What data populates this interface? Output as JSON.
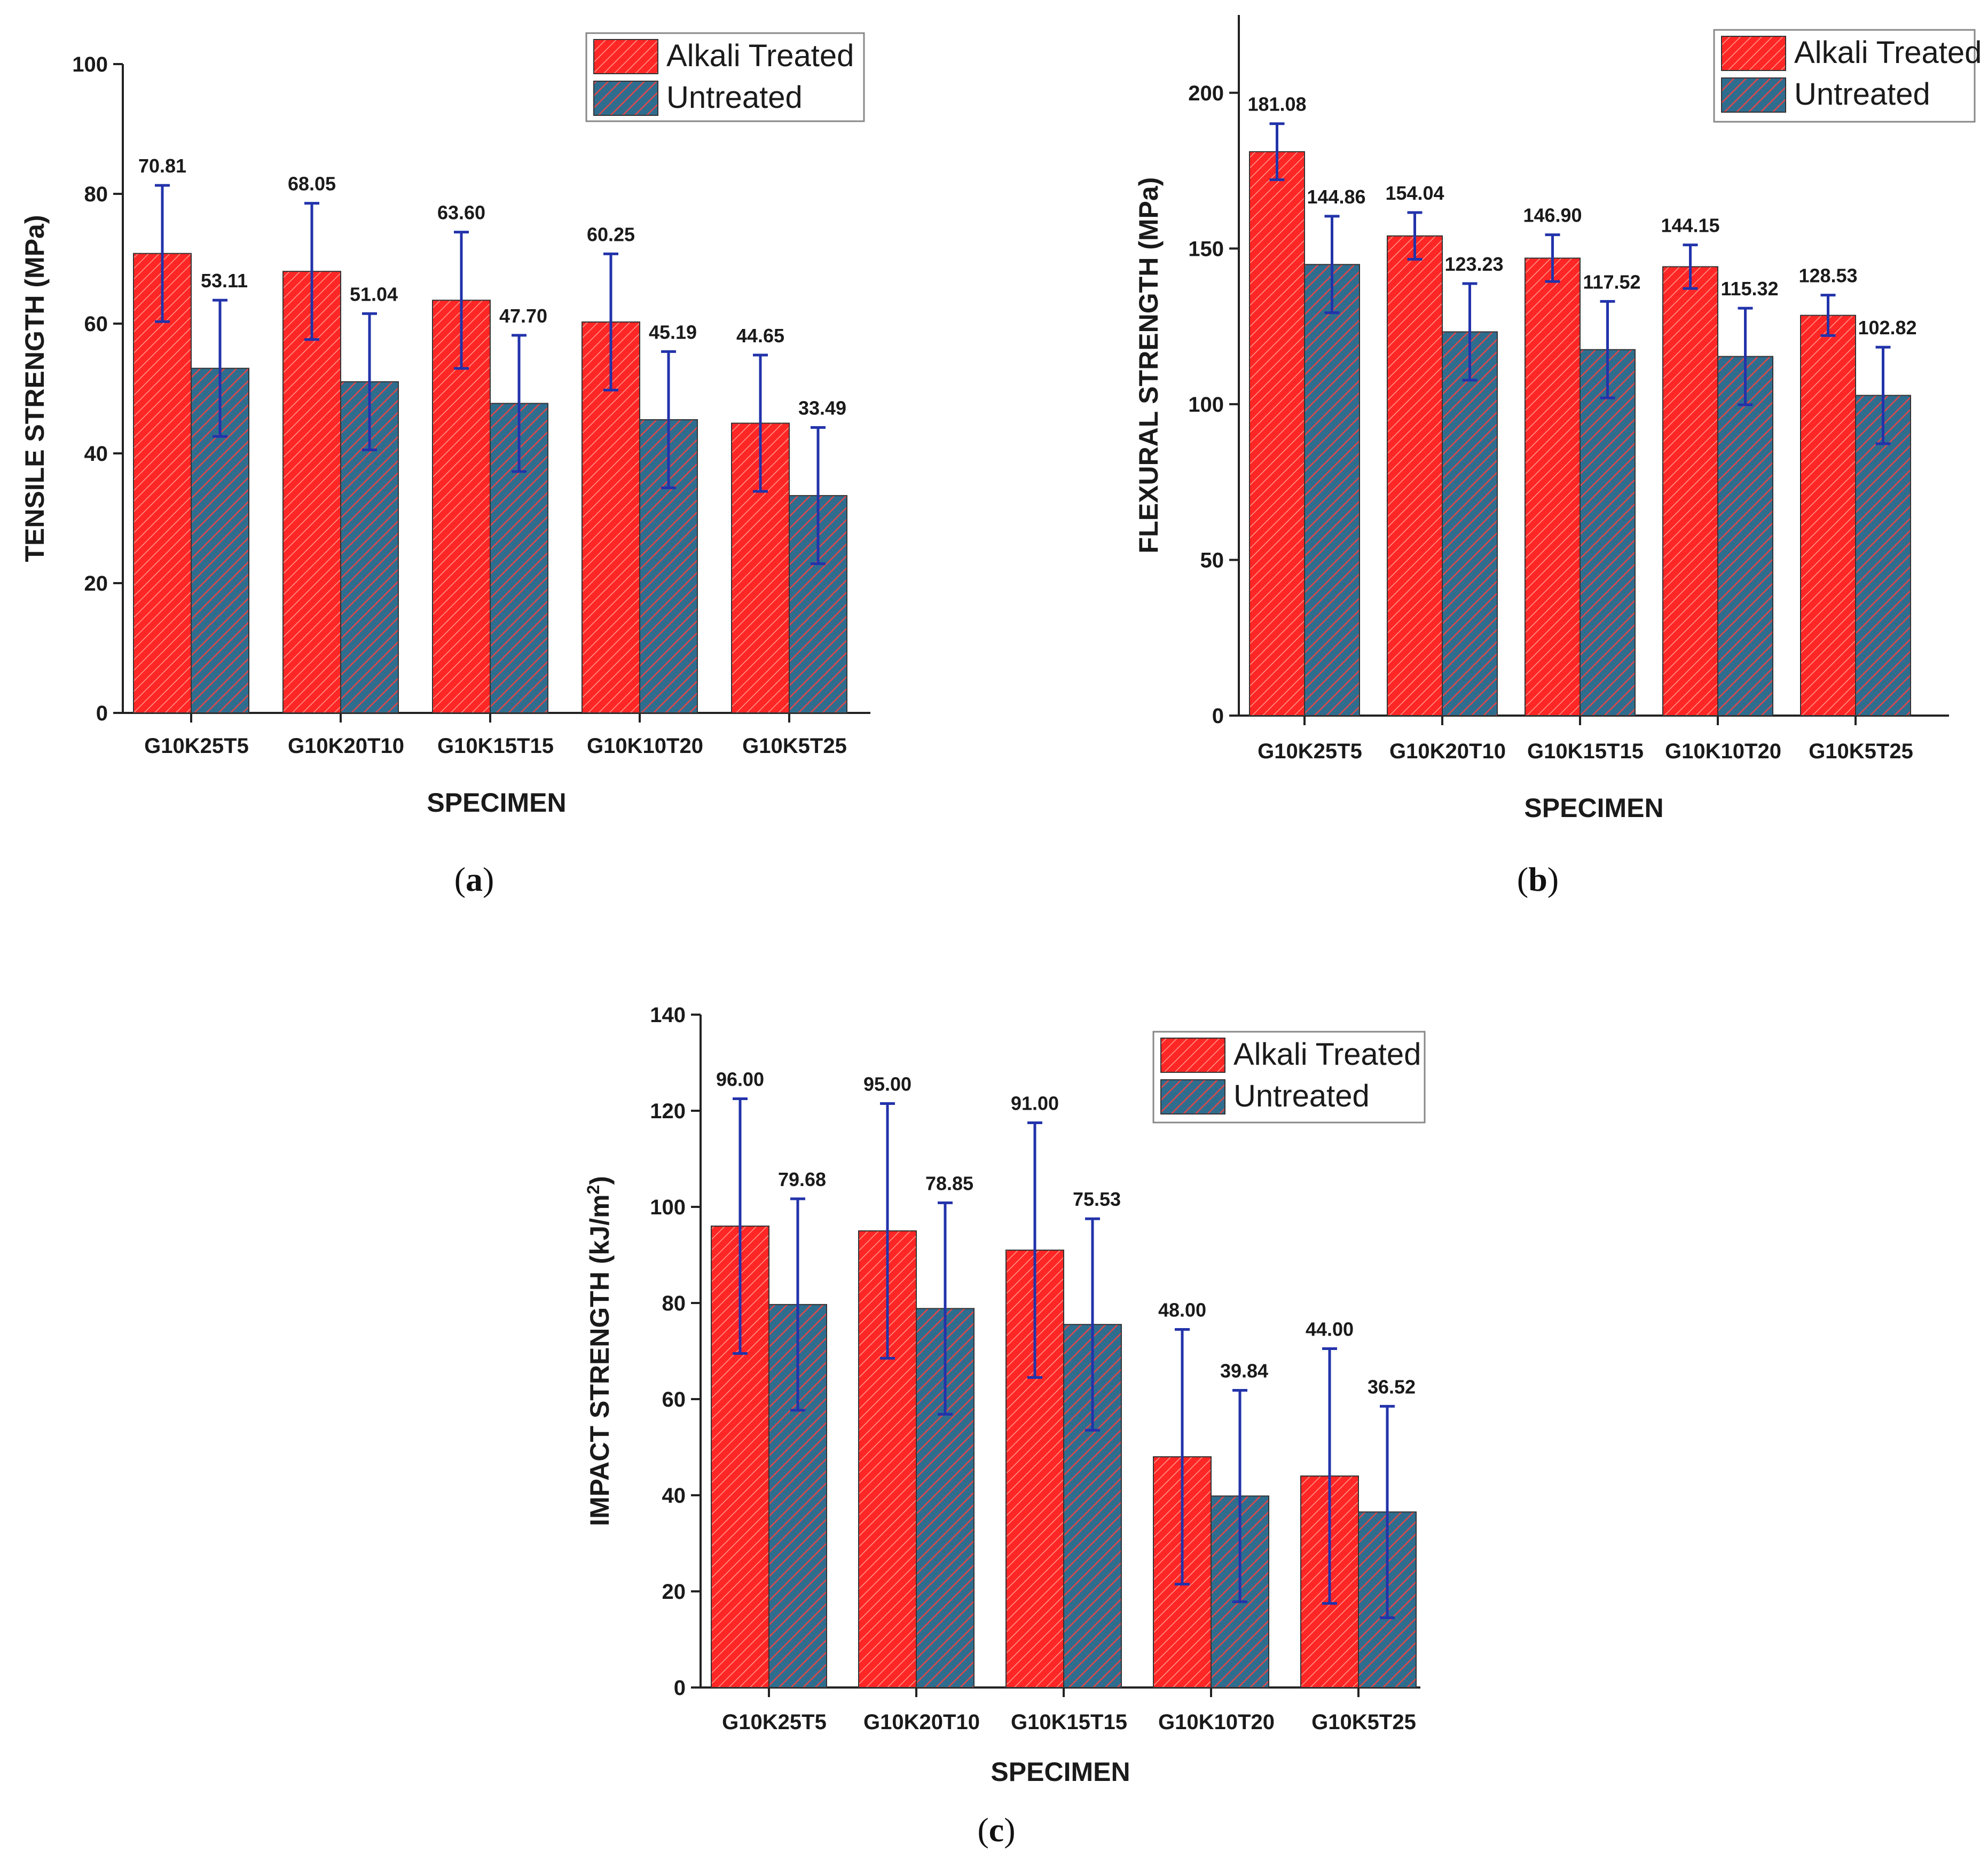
{
  "colors": {
    "treated": "#ff2626",
    "untreated": "#2f6d8f",
    "error_bar": "#2233aa",
    "axis": "#222222"
  },
  "chart_data": [
    {
      "id": "a",
      "type": "bar",
      "caption_letter": "a",
      "ylabel": "TENSILE STRENGTH (MPa)",
      "xlabel": "SPECIMEN",
      "ylim": [
        0,
        100
      ],
      "yticks": [
        0,
        20,
        40,
        60,
        80,
        100
      ],
      "categories": [
        "G10K25T5",
        "G10K20T10",
        "G10K15T15",
        "G10K10T20",
        "G10K5T25"
      ],
      "legend_position": "top-right",
      "series": [
        {
          "name": "Alkali Treated",
          "values": [
            70.81,
            68.05,
            63.6,
            60.25,
            44.65
          ],
          "labels": [
            "70.81",
            "68.05",
            "63.60",
            "60.25",
            "44.65"
          ],
          "error": [
            10.5,
            10.5,
            10.5,
            10.5,
            10.5
          ]
        },
        {
          "name": "Untreated",
          "values": [
            53.11,
            51.04,
            47.7,
            45.19,
            33.49
          ],
          "labels": [
            "53.11",
            "51.04",
            "47.70",
            "45.19",
            "33.49"
          ],
          "error": [
            10.5,
            10.5,
            10.5,
            10.5,
            10.5
          ]
        }
      ]
    },
    {
      "id": "b",
      "type": "bar",
      "caption_letter": "b",
      "ylabel": "FLEXURAL STRENGTH (MPa)",
      "xlabel": "SPECIMEN",
      "ylim": [
        0,
        225
      ],
      "yticks": [
        0,
        50,
        100,
        150,
        200
      ],
      "categories": [
        "G10K25T5",
        "G10K20T10",
        "G10K15T15",
        "G10K10T20",
        "G10K5T25"
      ],
      "legend_position": "top-right",
      "series": [
        {
          "name": "Alkali Treated",
          "values": [
            181.08,
            154.04,
            146.9,
            144.15,
            128.53
          ],
          "labels": [
            "181.08",
            "154.04",
            "146.90",
            "144.15",
            "128.53"
          ],
          "error": [
            9,
            7.5,
            7.5,
            7,
            6.5
          ]
        },
        {
          "name": "Untreated",
          "values": [
            144.86,
            123.23,
            117.52,
            115.32,
            102.82
          ],
          "labels": [
            "144.86",
            "123.23",
            "117.52",
            "115.32",
            "102.82"
          ],
          "error": [
            15.5,
            15.5,
            15.5,
            15.5,
            15.5
          ]
        }
      ]
    },
    {
      "id": "c",
      "type": "bar",
      "caption_letter": "c",
      "ylabel": "IMPACT STRENGTH (kJ/m",
      "ylabel_sup": "2",
      "ylabel_close": ")",
      "xlabel": "SPECIMEN",
      "ylim": [
        0,
        140
      ],
      "yticks": [
        0,
        20,
        40,
        60,
        80,
        100,
        120,
        140
      ],
      "categories": [
        "G10K25T5",
        "G10K20T10",
        "G10K15T15",
        "G10K10T20",
        "G10K5T25"
      ],
      "legend_position": "top-right",
      "series": [
        {
          "name": "Alkali Treated",
          "values": [
            96.0,
            95.0,
            91.0,
            48.0,
            44.0
          ],
          "labels": [
            "96.00",
            "95.00",
            "91.00",
            "48.00",
            "44.00"
          ],
          "error": [
            26.5,
            26.5,
            26.5,
            26.5,
            26.5
          ]
        },
        {
          "name": "Untreated",
          "values": [
            79.68,
            78.85,
            75.53,
            39.84,
            36.52
          ],
          "labels": [
            "79.68",
            "78.85",
            "75.53",
            "39.84",
            "36.52"
          ],
          "error": [
            22,
            22,
            22,
            22,
            22
          ]
        }
      ]
    }
  ]
}
